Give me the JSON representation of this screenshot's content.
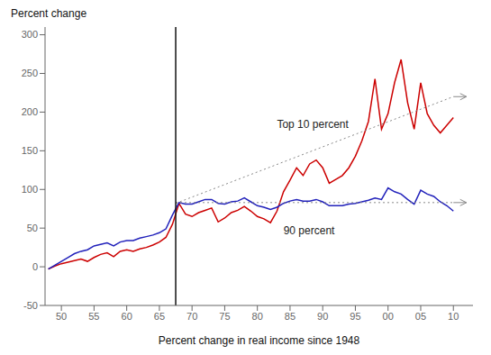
{
  "chart_data": {
    "type": "line",
    "x_label": "Percent change in real income since 1948",
    "y_label": "Percent change",
    "x": [
      48,
      49,
      50,
      51,
      52,
      53,
      54,
      55,
      56,
      57,
      58,
      59,
      60,
      61,
      62,
      63,
      64,
      65,
      66,
      67,
      68,
      69,
      70,
      71,
      72,
      73,
      74,
      75,
      76,
      77,
      78,
      79,
      80,
      81,
      82,
      83,
      84,
      85,
      86,
      87,
      88,
      89,
      90,
      91,
      92,
      93,
      94,
      95,
      96,
      97,
      98,
      99,
      100,
      101,
      102,
      103,
      104,
      105,
      106,
      107,
      108,
      109,
      110
    ],
    "series": [
      {
        "color": "#cc0000",
        "values": [
          -3,
          1,
          4,
          6,
          8,
          10,
          7,
          12,
          16,
          18,
          13,
          20,
          22,
          20,
          23,
          25,
          28,
          32,
          38,
          55,
          82,
          68,
          65,
          70,
          73,
          76,
          58,
          63,
          70,
          73,
          78,
          72,
          65,
          62,
          57,
          72,
          97,
          112,
          128,
          118,
          133,
          138,
          128,
          108,
          113,
          118,
          128,
          143,
          163,
          188,
          243,
          178,
          198,
          238,
          268,
          212,
          178,
          238,
          198,
          183,
          173,
          183,
          193
        ]
      },
      {
        "color": "#2222bb",
        "values": [
          -3,
          2,
          7,
          12,
          17,
          20,
          22,
          27,
          29,
          31,
          27,
          32,
          34,
          34,
          37,
          39,
          41,
          44,
          49,
          67,
          83,
          81,
          81,
          84,
          87,
          87,
          82,
          81,
          84,
          85,
          89,
          84,
          79,
          77,
          74,
          77,
          82,
          85,
          87,
          85,
          85,
          87,
          84,
          79,
          79,
          79,
          81,
          82,
          84,
          86,
          89,
          87,
          102,
          97,
          94,
          87,
          81,
          99,
          94,
          91,
          84,
          79,
          72
        ]
      },
      {
        "color": "#888888",
        "line_style": "dotted",
        "x": [
          67.5,
          110
        ],
        "values": [
          82,
          220
        ]
      },
      {
        "color": "#888888",
        "line_style": "dotted",
        "x": [
          67.5,
          110
        ],
        "values": [
          83,
          83
        ]
      }
    ],
    "arrows": [
      {
        "x": 110,
        "y": 220,
        "x_end": 112,
        "y_end": 220,
        "color": "#888888"
      },
      {
        "x": 110,
        "y": 83,
        "x_end": 112,
        "y_end": 83,
        "color": "#888888"
      }
    ],
    "vline": {
      "x": 67.5,
      "color": "#111111"
    },
    "annotations": [
      {
        "text": "Top 10 percent",
        "x": 83,
        "y": 175
      },
      {
        "text": "90 percent",
        "x": 84,
        "y": 55
      }
    ],
    "xlim": [
      47.5,
      113
    ],
    "ylim": [
      -50,
      310
    ],
    "xticks": [
      50,
      55,
      60,
      65,
      70,
      75,
      80,
      85,
      90,
      95,
      {
        "value": 100,
        "label": "00"
      },
      {
        "value": 105,
        "label": "05"
      },
      {
        "value": 110,
        "label": "10"
      }
    ],
    "yticks": [
      -50,
      0,
      50,
      100,
      150,
      200,
      250,
      300
    ],
    "grid": false
  }
}
